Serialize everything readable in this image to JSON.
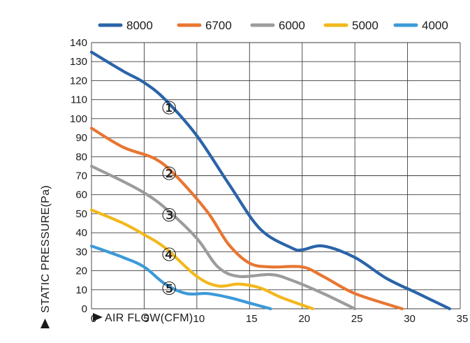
{
  "chart_data": {
    "type": "line",
    "xlabel": "AIR FLOW(CFM)",
    "ylabel": "STATIC PRESSURE(Pa)",
    "xlim": [
      0,
      35
    ],
    "ylim": [
      0,
      140
    ],
    "x_ticks": [
      0,
      5,
      10,
      15,
      20,
      25,
      30,
      35
    ],
    "y_ticks": [
      0,
      10,
      20,
      30,
      40,
      50,
      60,
      70,
      80,
      90,
      100,
      110,
      120,
      130,
      140
    ],
    "grid": true,
    "legend_position": "top",
    "series": [
      {
        "name": "8000",
        "color": "#2b64a8",
        "marker_label": "①",
        "x": [
          0,
          3,
          5,
          7,
          10,
          13,
          16,
          19,
          20,
          22,
          25,
          28,
          31,
          34
        ],
        "y": [
          135,
          125,
          119,
          110,
          91,
          66,
          42,
          32,
          31,
          33,
          27,
          16,
          8,
          0
        ]
      },
      {
        "name": "6700",
        "color": "#e87632",
        "marker_label": "②",
        "x": [
          0,
          3,
          6,
          8,
          11,
          13,
          15,
          17,
          20,
          22,
          25,
          29.5
        ],
        "y": [
          95,
          85,
          79,
          70,
          51,
          34,
          24,
          22,
          22,
          17,
          8,
          0
        ]
      },
      {
        "name": "6000",
        "color": "#9c9c9c",
        "marker_label": "③",
        "x": [
          0,
          3,
          5,
          7,
          10,
          12,
          14,
          17,
          19,
          22,
          25
        ],
        "y": [
          75,
          67,
          61,
          53,
          37,
          22,
          17,
          18,
          15,
          8,
          0
        ]
      },
      {
        "name": "5000",
        "color": "#f2b81c",
        "marker_label": "④",
        "x": [
          0,
          3,
          5,
          7,
          10,
          12,
          14,
          16,
          18,
          21
        ],
        "y": [
          52,
          45,
          39,
          32,
          17,
          12,
          13,
          11,
          6,
          0
        ]
      },
      {
        "name": "4000",
        "color": "#3c9ad8",
        "marker_label": "⑤",
        "x": [
          0,
          3,
          5,
          7,
          9,
          11,
          13,
          15,
          17
        ],
        "y": [
          33,
          27,
          22,
          13,
          8,
          8,
          6,
          3,
          0
        ]
      }
    ]
  }
}
